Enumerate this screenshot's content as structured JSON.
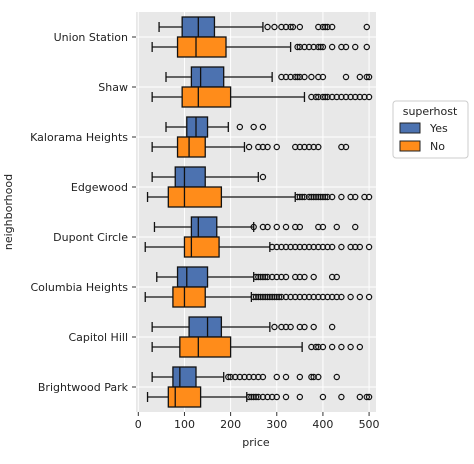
{
  "chart_data": {
    "type": "boxplot",
    "orientation": "horizontal",
    "xlabel": "price",
    "ylabel": "neighborhood",
    "xlim": [
      -5,
      515
    ],
    "xticks": [
      0,
      100,
      200,
      300,
      400,
      500
    ],
    "grid": true,
    "legend": {
      "title": "superhost",
      "placement": "right"
    },
    "series": [
      {
        "name": "Yes",
        "color": "#4c72b0"
      },
      {
        "name": "No",
        "color": "#ff8c1a"
      }
    ],
    "categories": [
      "Union Station",
      "Shaw",
      "Kalorama Heights",
      "Edgewood",
      "Dupont Circle",
      "Columbia Heights",
      "Capitol Hill",
      "Brightwood Park"
    ],
    "boxes": [
      [
        {
          "whislo": 45,
          "q1": 95,
          "med": 130,
          "q3": 165,
          "whishi": 270,
          "fliers": [
            280,
            295,
            310,
            320,
            330,
            335,
            350,
            390,
            400,
            405,
            410,
            420,
            495
          ]
        },
        {
          "whislo": 30,
          "q1": 85,
          "med": 125,
          "q3": 190,
          "whishi": 330,
          "fliers": [
            345,
            350,
            360,
            370,
            380,
            390,
            395,
            400,
            420,
            440,
            450,
            470,
            495
          ]
        }
      ],
      [
        {
          "whislo": 60,
          "q1": 115,
          "med": 135,
          "q3": 185,
          "whishi": 290,
          "fliers": [
            310,
            320,
            330,
            340,
            345,
            350,
            360,
            375,
            390,
            400,
            450,
            480,
            495,
            500
          ]
        },
        {
          "whislo": 30,
          "q1": 95,
          "med": 130,
          "q3": 200,
          "whishi": 360,
          "fliers": [
            375,
            385,
            390,
            400,
            405,
            410,
            420,
            430,
            440,
            450,
            460,
            470,
            480,
            490,
            500
          ]
        }
      ],
      [
        {
          "whislo": 60,
          "q1": 105,
          "med": 125,
          "q3": 150,
          "whishi": 195,
          "fliers": [
            220,
            250,
            270
          ]
        },
        {
          "whislo": 30,
          "q1": 85,
          "med": 110,
          "q3": 145,
          "whishi": 230,
          "fliers": [
            240,
            260,
            270,
            280,
            300,
            340,
            350,
            360,
            370,
            380,
            390,
            440,
            450
          ]
        }
      ],
      [
        {
          "whislo": 30,
          "q1": 80,
          "med": 100,
          "q3": 145,
          "whishi": 260,
          "fliers": [
            270
          ]
        },
        {
          "whislo": 20,
          "q1": 65,
          "med": 100,
          "q3": 180,
          "whishi": 340,
          "fliers": [
            345,
            350,
            355,
            360,
            370,
            375,
            380,
            385,
            390,
            395,
            400,
            405,
            410,
            420,
            440,
            460,
            470,
            490,
            500
          ]
        }
      ],
      [
        {
          "whislo": 35,
          "q1": 115,
          "med": 130,
          "q3": 170,
          "whishi": 250,
          "fliers": [
            250,
            270,
            280,
            300,
            320,
            340,
            350,
            390,
            400,
            430,
            470
          ]
        },
        {
          "whislo": 15,
          "q1": 100,
          "med": 115,
          "q3": 175,
          "whishi": 285,
          "fliers": [
            290,
            300,
            310,
            320,
            330,
            340,
            350,
            360,
            370,
            380,
            390,
            400,
            410,
            420,
            440,
            460,
            470,
            480,
            500
          ]
        }
      ],
      [
        {
          "whislo": 40,
          "q1": 85,
          "med": 105,
          "q3": 150,
          "whishi": 250,
          "fliers": [
            255,
            260,
            265,
            270,
            275,
            280,
            290,
            300,
            310,
            320,
            340,
            350,
            360,
            380,
            420,
            430
          ]
        },
        {
          "whislo": 15,
          "q1": 75,
          "med": 100,
          "q3": 145,
          "whishi": 245,
          "fliers": [
            250,
            255,
            260,
            265,
            270,
            275,
            280,
            285,
            290,
            295,
            300,
            305,
            310,
            320,
            330,
            340,
            350,
            360,
            370,
            380,
            390,
            400,
            410,
            420,
            430,
            440,
            460,
            480,
            500
          ]
        }
      ],
      [
        {
          "whislo": 30,
          "q1": 110,
          "med": 150,
          "q3": 180,
          "whishi": 285,
          "fliers": [
            295,
            310,
            320,
            330,
            350,
            360,
            380,
            420
          ]
        },
        {
          "whislo": 30,
          "q1": 90,
          "med": 130,
          "q3": 200,
          "whishi": 355,
          "fliers": [
            375,
            385,
            390,
            400,
            420,
            440,
            460,
            480
          ]
        }
      ],
      [
        {
          "whislo": 30,
          "q1": 75,
          "med": 90,
          "q3": 125,
          "whishi": 185,
          "fliers": [
            195,
            200,
            210,
            220,
            230,
            240,
            250,
            260,
            270,
            300,
            320,
            350,
            375,
            380,
            390,
            430
          ]
        },
        {
          "whislo": 20,
          "q1": 65,
          "med": 80,
          "q3": 135,
          "whishi": 235,
          "fliers": [
            240,
            245,
            250,
            255,
            260,
            270,
            280,
            290,
            300,
            320,
            350,
            400,
            440,
            480,
            495,
            500
          ]
        }
      ]
    ]
  }
}
